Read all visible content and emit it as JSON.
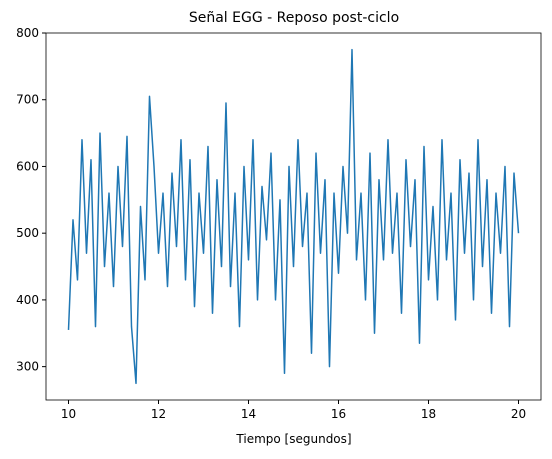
{
  "chart_data": {
    "type": "line",
    "title": "Señal EGG - Reposo post-ciclo",
    "x_label": "Tiempo [segundos]",
    "x": [
      10.0,
      10.1,
      10.2,
      10.3,
      10.4,
      10.5,
      10.6,
      10.7,
      10.8,
      10.9,
      11.0,
      11.1,
      11.2,
      11.3,
      11.4,
      11.5,
      11.6,
      11.7,
      11.8,
      11.9,
      12.0,
      12.1,
      12.2,
      12.3,
      12.4,
      12.5,
      12.6,
      12.7,
      12.8,
      12.9,
      13.0,
      13.1,
      13.2,
      13.3,
      13.4,
      13.5,
      13.6,
      13.7,
      13.8,
      13.9,
      14.0,
      14.1,
      14.2,
      14.3,
      14.4,
      14.5,
      14.6,
      14.7,
      14.8,
      14.9,
      15.0,
      15.1,
      15.2,
      15.3,
      15.4,
      15.5,
      15.6,
      15.7,
      15.8,
      15.9,
      16.0,
      16.1,
      16.2,
      16.3,
      16.4,
      16.5,
      16.6,
      16.7,
      16.8,
      16.9,
      17.0,
      17.1,
      17.2,
      17.3,
      17.4,
      17.5,
      17.6,
      17.7,
      17.8,
      17.9,
      18.0,
      18.1,
      18.2,
      18.3,
      18.4,
      18.5,
      18.6,
      18.7,
      18.8,
      18.9,
      19.0,
      19.1,
      19.2,
      19.3,
      19.4,
      19.5,
      19.6,
      19.7,
      19.8,
      19.9,
      20.0
    ],
    "values": [
      355,
      520,
      430,
      640,
      470,
      610,
      360,
      650,
      450,
      560,
      420,
      600,
      480,
      645,
      360,
      275,
      540,
      430,
      705,
      600,
      470,
      560,
      420,
      590,
      480,
      640,
      430,
      610,
      390,
      560,
      470,
      630,
      380,
      580,
      450,
      695,
      420,
      560,
      360,
      600,
      460,
      640,
      400,
      570,
      490,
      620,
      400,
      550,
      290,
      600,
      450,
      640,
      480,
      560,
      320,
      620,
      470,
      580,
      300,
      560,
      440,
      600,
      500,
      775,
      460,
      560,
      400,
      620,
      350,
      580,
      460,
      640,
      470,
      560,
      380,
      610,
      480,
      580,
      335,
      630,
      430,
      540,
      400,
      640,
      460,
      560,
      370,
      610,
      470,
      590,
      400,
      640,
      450,
      580,
      380,
      560,
      470,
      600,
      360,
      590,
      500
    ],
    "color": "#1f77b4",
    "xlim": [
      9.5,
      20.5
    ],
    "xticks": [
      10,
      12,
      14,
      16,
      18,
      20
    ],
    "ylim": [
      250,
      800
    ],
    "yticks": [
      300,
      400,
      500,
      600,
      700,
      800
    ]
  }
}
